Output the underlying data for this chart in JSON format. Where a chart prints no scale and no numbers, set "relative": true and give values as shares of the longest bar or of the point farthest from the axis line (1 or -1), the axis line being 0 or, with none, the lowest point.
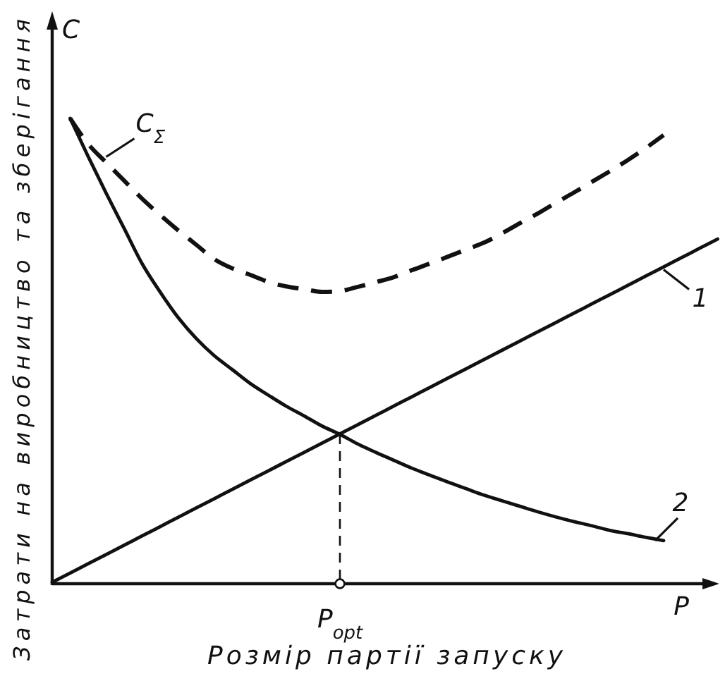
{
  "chart_data": {
    "type": "line",
    "relative": true,
    "line_style": "solid",
    "xlabel": "Розмір партії запуску",
    "ylabel": "Затрати на виробництво та зберігання",
    "annotations": [
      "C",
      "P",
      "P$_{opt}$"
    ],
    "categories": [
      null,
      null,
      null,
      null,
      null,
      null,
      null,
      null,
      null,
      null,
      null,
      null,
      null,
      null,
      null,
      null,
      null,
      null,
      null,
      null,
      null,
      null,
      null,
      null,
      null,
      null,
      null,
      null,
      null,
      null,
      null,
      null,
      null,
      null,
      null,
      null,
      null,
      null
    ],
    "series": [
      {
        "name": "1",
        "color": "#111111",
        "values": [
          0,
          0.02,
          0.04,
          0.06,
          0.08,
          0.1,
          0.12,
          0.14,
          0.16,
          0.18,
          0.2,
          0.22,
          0.24,
          0.26,
          0.28,
          0.3,
          0.32,
          0.34,
          0.36,
          0.38,
          0.4,
          0.42,
          0.44,
          0.46,
          0.48,
          0.5,
          0.52,
          0.54,
          0.56,
          0.58,
          0.6,
          0.62,
          0.64,
          0.66,
          0.68,
          0.7,
          0.72,
          0.74
        ]
      },
      {
        "name": "2",
        "color": "#111111",
        "values": [
          null,
          1,
          0.918,
          0.839,
          0.763,
          0.687,
          0.626,
          0.571,
          0.526,
          0.489,
          0.459,
          0.429,
          0.404,
          0.38,
          0.359,
          0.337,
          0.319,
          0.298,
          0.28,
          0.263,
          0.246,
          0.231,
          0.216,
          0.202,
          0.188,
          0.176,
          0.164,
          0.152,
          0.141,
          0.131,
          0.122,
          0.112,
          0.105,
          0.097,
          0.09,
          null,
          null,
          null
        ]
      },
      {
        "name": "C$_{Σ}$",
        "color": "#111111",
        "line_style": "dashed",
        "values": [
          null,
          1,
          0.945,
          0.905,
          0.866,
          0.827,
          0.792,
          0.759,
          0.728,
          0.697,
          0.677,
          0.663,
          0.648,
          0.638,
          0.632,
          0.626,
          0.628,
          0.637,
          0.647,
          0.658,
          0.673,
          0.687,
          0.702,
          0.717,
          0.732,
          0.752,
          0.774,
          0.795,
          0.818,
          0.84,
          0.863,
          0.886,
          0.91,
          0.936,
          0.964,
          null,
          null,
          null
        ]
      }
    ]
  }
}
